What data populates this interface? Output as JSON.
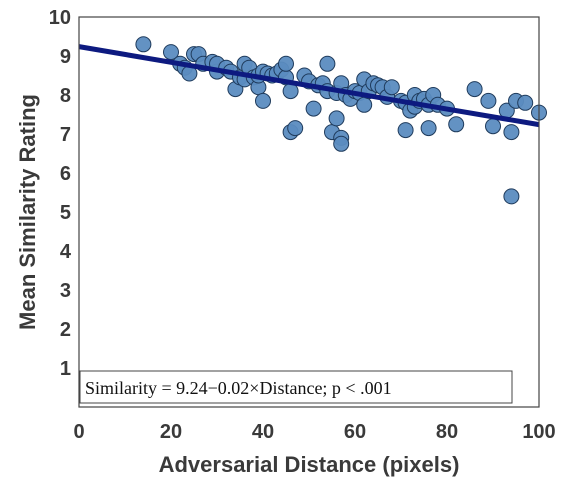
{
  "chart_data": {
    "type": "scatter",
    "title": "",
    "xlabel": "Adversarial Distance (pixels)",
    "ylabel": "Mean Similarity Rating",
    "xlim": [
      0,
      100
    ],
    "ylim": [
      0,
      10
    ],
    "xticks": [
      0,
      20,
      40,
      60,
      80,
      100
    ],
    "yticks": [
      1,
      2,
      3,
      4,
      5,
      6,
      7,
      8,
      9,
      10
    ],
    "grid": false,
    "legend": "none",
    "colors": {
      "points": "#5b8cc0",
      "point_edge": "#1f3b5c",
      "fit_line": "#0d1a80"
    },
    "regression": {
      "intercept": 9.24,
      "slope": -0.02
    },
    "annotation": "Similarity = 9.24−0.02×Distance; p < .001",
    "points": [
      [
        14,
        9.3
      ],
      [
        20,
        9.1
      ],
      [
        22,
        8.8
      ],
      [
        23,
        8.7
      ],
      [
        24,
        8.55
      ],
      [
        25,
        9.05
      ],
      [
        26,
        9.05
      ],
      [
        27,
        8.8
      ],
      [
        29,
        8.85
      ],
      [
        30,
        8.6
      ],
      [
        30,
        8.8
      ],
      [
        32,
        8.7
      ],
      [
        33,
        8.6
      ],
      [
        34,
        8.15
      ],
      [
        35,
        8.45
      ],
      [
        36,
        8.8
      ],
      [
        36,
        8.4
      ],
      [
        37,
        8.7
      ],
      [
        38,
        8.45
      ],
      [
        39,
        8.2
      ],
      [
        39,
        8.5
      ],
      [
        40,
        7.85
      ],
      [
        40,
        8.6
      ],
      [
        41,
        8.55
      ],
      [
        42,
        8.5
      ],
      [
        43,
        8.55
      ],
      [
        44,
        8.65
      ],
      [
        45,
        8.45
      ],
      [
        45,
        8.8
      ],
      [
        46,
        8.1
      ],
      [
        46,
        7.05
      ],
      [
        47,
        7.15
      ],
      [
        49,
        8.5
      ],
      [
        50,
        8.35
      ],
      [
        51,
        7.65
      ],
      [
        52,
        8.25
      ],
      [
        53,
        8.3
      ],
      [
        54,
        8.1
      ],
      [
        54,
        8.8
      ],
      [
        55,
        7.05
      ],
      [
        56,
        7.4
      ],
      [
        56,
        8.05
      ],
      [
        57,
        8.3
      ],
      [
        57,
        6.9
      ],
      [
        57,
        6.75
      ],
      [
        58,
        8.0
      ],
      [
        59,
        7.9
      ],
      [
        60,
        8.1
      ],
      [
        61,
        8.05
      ],
      [
        62,
        8.4
      ],
      [
        62,
        7.75
      ],
      [
        63,
        8.1
      ],
      [
        64,
        8.3
      ],
      [
        65,
        8.25
      ],
      [
        66,
        8.2
      ],
      [
        67,
        7.95
      ],
      [
        68,
        8.2
      ],
      [
        70,
        7.85
      ],
      [
        71,
        7.1
      ],
      [
        71,
        7.8
      ],
      [
        72,
        7.6
      ],
      [
        73,
        8.0
      ],
      [
        73,
        7.7
      ],
      [
        74,
        7.85
      ],
      [
        75,
        7.9
      ],
      [
        76,
        7.75
      ],
      [
        76,
        7.15
      ],
      [
        77,
        8.0
      ],
      [
        78,
        7.75
      ],
      [
        80,
        7.65
      ],
      [
        82,
        7.25
      ],
      [
        86,
        8.15
      ],
      [
        89,
        7.85
      ],
      [
        90,
        7.2
      ],
      [
        93,
        7.6
      ],
      [
        94,
        7.05
      ],
      [
        94,
        5.4
      ],
      [
        95,
        7.85
      ],
      [
        97,
        7.8
      ],
      [
        100,
        7.55
      ]
    ]
  }
}
